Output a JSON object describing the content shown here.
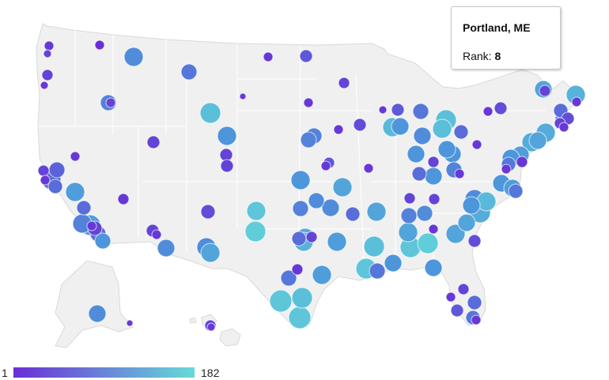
{
  "map": {
    "tooltip": {
      "title": "Portland, ME",
      "rank_label": "Rank:",
      "rank_value": "8"
    },
    "legend": {
      "min": "1",
      "max": "182",
      "color_min": "#6a2ed6",
      "color_max": "#66dbd8"
    },
    "colors": {
      "land": "#f0f0f0",
      "border": "#d9d9d9"
    }
  }
}
